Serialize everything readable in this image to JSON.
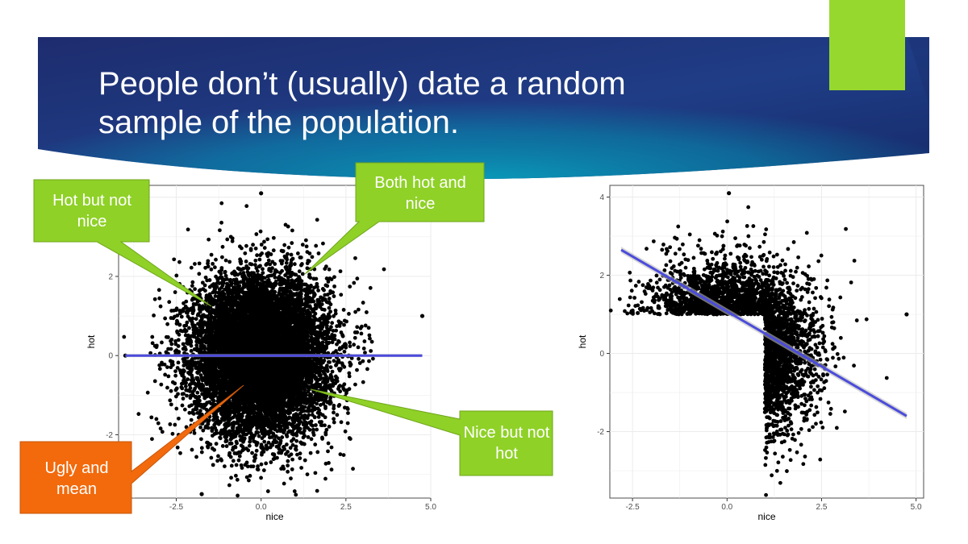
{
  "slide": {
    "title_line1": "People don’t (usually) date a random",
    "title_line2": "sample of the population."
  },
  "colors": {
    "banner_dark": "#1b2a6b",
    "banner_teal": "#0a8fb0",
    "accent_green": "#97d82e",
    "callout_green": "#8fd127",
    "callout_orange": "#f26a0c",
    "regression_line": "#4b4bdb",
    "points": "#000000"
  },
  "callouts": {
    "hot_not_nice": "Hot but not nice",
    "both": "Both hot and nice",
    "nice_not_hot": "Nice but not hot",
    "ugly_mean": "Ugly and mean"
  },
  "chart_data": [
    {
      "type": "scatter",
      "title": "",
      "xlabel": "nice",
      "ylabel": "hot",
      "xlim": [
        -4.2,
        5.0
      ],
      "ylim": [
        -3.6,
        4.3
      ],
      "x_ticks": [
        "-2.5",
        "0.0",
        "2.5",
        "5.0"
      ],
      "x_tick_values": [
        -2.5,
        0.0,
        2.5,
        5.0
      ],
      "y_ticks": [
        "-2",
        "0",
        "2"
      ],
      "y_tick_values": [
        -2,
        0,
        2
      ],
      "grid": true,
      "description_values": {
        "point_cloud": "bivariate standard normal, n ≈ 10000",
        "center": [
          0,
          0
        ],
        "sd": [
          1,
          1
        ]
      },
      "regression": {
        "x": [
          -4.0,
          4.75
        ],
        "y": [
          0.0,
          0.0
        ]
      },
      "outliers": [
        {
          "x": -4.0,
          "y": 0.0
        },
        {
          "x": 4.75,
          "y": 1.0
        },
        {
          "x": 0.0,
          "y": 4.1
        },
        {
          "x": -1.75,
          "y": -3.5
        }
      ]
    },
    {
      "type": "scatter",
      "title": "",
      "xlabel": "nice",
      "ylabel": "hot",
      "xlim": [
        -3.1,
        5.2
      ],
      "ylim": [
        -3.7,
        4.3
      ],
      "x_ticks": [
        "-2.5",
        "0.0",
        "2.5",
        "5.0"
      ],
      "x_tick_values": [
        -2.5,
        0.0,
        2.5,
        5.0
      ],
      "y_ticks": [
        "-2",
        "0",
        "2",
        "4"
      ],
      "y_tick_values": [
        -2,
        0,
        2,
        4
      ],
      "grid": true,
      "description_values": {
        "selection": "points with hot > 1 or nice > 1 from a bivariate standard normal"
      },
      "regression": {
        "x": [
          -2.8,
          4.75
        ],
        "y": [
          2.65,
          -1.6
        ]
      },
      "outliers": [
        {
          "x": 4.75,
          "y": 1.0
        },
        {
          "x": 0.05,
          "y": 4.1
        }
      ]
    }
  ]
}
